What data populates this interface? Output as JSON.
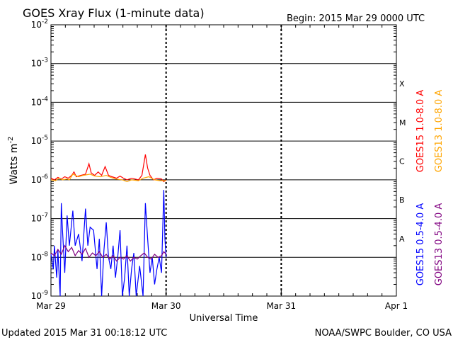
{
  "chart_data": {
    "type": "line",
    "title": "GOES Xray Flux (1-minute data)",
    "begin_label": "Begin:  2015 Mar 29 0000 UTC",
    "xlabel": "Universal Time",
    "ylabel": "Watts m",
    "ylabel_sup": "-2",
    "y_scale": "log",
    "ylim": [
      1e-09,
      0.01
    ],
    "y_ticks": [
      {
        "base": "10",
        "exp": "-2"
      },
      {
        "base": "10",
        "exp": "-3"
      },
      {
        "base": "10",
        "exp": "-4"
      },
      {
        "base": "10",
        "exp": "-5"
      },
      {
        "base": "10",
        "exp": "-6"
      },
      {
        "base": "10",
        "exp": "-7"
      },
      {
        "base": "10",
        "exp": "-8"
      },
      {
        "base": "10",
        "exp": "-9"
      }
    ],
    "x_ticks": [
      "Mar 29",
      "Mar 30",
      "Mar 31",
      "Apr 1"
    ],
    "xlim_days": [
      0,
      3
    ],
    "data_end_day": 1.01,
    "flare_classes": [
      {
        "label": "X",
        "exponent": -4
      },
      {
        "label": "M",
        "exponent": -5
      },
      {
        "label": "C",
        "exponent": -6
      },
      {
        "label": "B",
        "exponent": -7
      },
      {
        "label": "A",
        "exponent": -8
      }
    ],
    "grid": true,
    "legend_placement": "right, vertical",
    "series": [
      {
        "name": "GOES15 1.0-8.0 A",
        "color": "#ff0000",
        "points": [
          [
            0.0,
            1.1e-06
          ],
          [
            0.03,
            1e-06
          ],
          [
            0.06,
            1.15e-06
          ],
          [
            0.09,
            1.05e-06
          ],
          [
            0.12,
            1.2e-06
          ],
          [
            0.15,
            1.1e-06
          ],
          [
            0.18,
            1.3e-06
          ],
          [
            0.2,
            1.6e-06
          ],
          [
            0.22,
            1.2e-06
          ],
          [
            0.26,
            1.3e-06
          ],
          [
            0.3,
            1.4e-06
          ],
          [
            0.33,
            2.6e-06
          ],
          [
            0.35,
            1.5e-06
          ],
          [
            0.38,
            1.3e-06
          ],
          [
            0.41,
            1.6e-06
          ],
          [
            0.44,
            1.3e-06
          ],
          [
            0.47,
            2.2e-06
          ],
          [
            0.5,
            1.3e-06
          ],
          [
            0.53,
            1.2e-06
          ],
          [
            0.57,
            1.1e-06
          ],
          [
            0.6,
            1.25e-06
          ],
          [
            0.63,
            1.1e-06
          ],
          [
            0.66,
            1e-06
          ],
          [
            0.7,
            1.1e-06
          ],
          [
            0.73,
            1.05e-06
          ],
          [
            0.76,
            1e-06
          ],
          [
            0.79,
            1.3e-06
          ],
          [
            0.82,
            4.5e-06
          ],
          [
            0.84,
            2e-06
          ],
          [
            0.86,
            1.3e-06
          ],
          [
            0.89,
            1e-06
          ],
          [
            0.92,
            1.1e-06
          ],
          [
            0.96,
            1.05e-06
          ],
          [
            0.98,
            9e-07
          ],
          [
            1.0,
            1e-06
          ]
        ]
      },
      {
        "name": "GOES13 1.0-8.0 A",
        "color": "#ffa500",
        "points": [
          [
            0.0,
            1e-06
          ],
          [
            0.04,
            9.5e-07
          ],
          [
            0.07,
            1.1e-06
          ],
          [
            0.1,
            1e-06
          ],
          [
            0.14,
            1.05e-06
          ],
          [
            0.16,
            1e-06
          ],
          [
            0.19,
            1.4e-06
          ],
          [
            0.24,
            1.2e-06
          ],
          [
            0.28,
            1.3e-06
          ],
          [
            0.34,
            1.4e-06
          ],
          [
            0.38,
            1.25e-06
          ],
          [
            0.43,
            1.2e-06
          ],
          [
            0.48,
            1.3e-06
          ],
          [
            0.52,
            1.15e-06
          ],
          [
            0.56,
            1.05e-06
          ],
          [
            0.62,
            1e-06
          ],
          [
            0.66,
            9e-07
          ],
          [
            0.7,
            1e-06
          ],
          [
            0.76,
            9.5e-07
          ],
          [
            0.8,
            1.1e-06
          ],
          [
            0.85,
            1.2e-06
          ],
          [
            0.9,
            1e-06
          ],
          [
            0.95,
            9.5e-07
          ],
          [
            1.0,
            9.5e-07
          ]
        ]
      },
      {
        "name": "GOES15 0.5-4.0 A",
        "color": "#0000ff",
        "points": [
          [
            0.0,
            1.2e-08
          ],
          [
            0.02,
            5e-09
          ],
          [
            0.03,
            2e-08
          ],
          [
            0.05,
            3e-09
          ],
          [
            0.06,
            1.5e-08
          ],
          [
            0.08,
            1e-09
          ],
          [
            0.09,
            2.5e-07
          ],
          [
            0.1,
            5e-08
          ],
          [
            0.12,
            4e-09
          ],
          [
            0.14,
            1.2e-07
          ],
          [
            0.16,
            2e-08
          ],
          [
            0.19,
            1.6e-07
          ],
          [
            0.21,
            2e-08
          ],
          [
            0.24,
            4e-08
          ],
          [
            0.27,
            8e-09
          ],
          [
            0.3,
            1.8e-07
          ],
          [
            0.32,
            2e-08
          ],
          [
            0.34,
            6e-08
          ],
          [
            0.37,
            5e-08
          ],
          [
            0.4,
            5e-09
          ],
          [
            0.42,
            3e-08
          ],
          [
            0.44,
            1e-09
          ],
          [
            0.46,
            1.5e-08
          ],
          [
            0.48,
            8e-08
          ],
          [
            0.5,
            1e-08
          ],
          [
            0.52,
            5e-09
          ],
          [
            0.54,
            2e-08
          ],
          [
            0.56,
            3e-09
          ],
          [
            0.58,
            1e-08
          ],
          [
            0.6,
            5e-08
          ],
          [
            0.62,
            1e-09
          ],
          [
            0.64,
            3e-09
          ],
          [
            0.66,
            2e-08
          ],
          [
            0.68,
            1e-09
          ],
          [
            0.7,
            5e-09
          ],
          [
            0.72,
            1.3e-08
          ],
          [
            0.74,
            1e-09
          ],
          [
            0.77,
            6e-09
          ],
          [
            0.8,
            1e-09
          ],
          [
            0.82,
            2.5e-07
          ],
          [
            0.84,
            3e-08
          ],
          [
            0.86,
            4e-09
          ],
          [
            0.88,
            1e-08
          ],
          [
            0.9,
            2e-09
          ],
          [
            0.92,
            5e-09
          ],
          [
            0.94,
            1e-08
          ],
          [
            0.96,
            4e-09
          ],
          [
            0.98,
            5.5e-07
          ],
          [
            0.99,
            3e-08
          ],
          [
            1.0,
            1e-08
          ]
        ]
      },
      {
        "name": "GOES13 0.5-4.0 A",
        "color": "#800080",
        "points": [
          [
            0.0,
            1.3e-08
          ],
          [
            0.03,
            1.1e-08
          ],
          [
            0.06,
            1.6e-08
          ],
          [
            0.09,
            1.2e-08
          ],
          [
            0.12,
            2e-08
          ],
          [
            0.15,
            1.4e-08
          ],
          [
            0.18,
            1.8e-08
          ],
          [
            0.21,
            1.1e-08
          ],
          [
            0.24,
            1.5e-08
          ],
          [
            0.27,
            1.2e-08
          ],
          [
            0.3,
            1.7e-08
          ],
          [
            0.33,
            1e-08
          ],
          [
            0.36,
            1.3e-08
          ],
          [
            0.39,
            1.1e-08
          ],
          [
            0.42,
            1.4e-08
          ],
          [
            0.45,
            1e-08
          ],
          [
            0.48,
            1.2e-08
          ],
          [
            0.51,
            9e-09
          ],
          [
            0.54,
            1.1e-08
          ],
          [
            0.57,
            8e-09
          ],
          [
            0.6,
            1e-08
          ],
          [
            0.63,
            9e-09
          ],
          [
            0.66,
            1.1e-08
          ],
          [
            0.69,
            8e-09
          ],
          [
            0.72,
            1e-08
          ],
          [
            0.75,
            9e-09
          ],
          [
            0.78,
            1.1e-08
          ],
          [
            0.81,
            1.3e-08
          ],
          [
            0.84,
            1e-08
          ],
          [
            0.87,
            9e-09
          ],
          [
            0.9,
            1.2e-08
          ],
          [
            0.93,
            1e-08
          ],
          [
            0.96,
            1.1e-08
          ],
          [
            0.98,
            1.4e-08
          ],
          [
            1.0,
            1.2e-08
          ]
        ]
      }
    ]
  },
  "footer": {
    "updated": "Updated 2015 Mar 31 00:18:12 UTC",
    "credit": "NOAA/SWPC Boulder, CO USA"
  }
}
